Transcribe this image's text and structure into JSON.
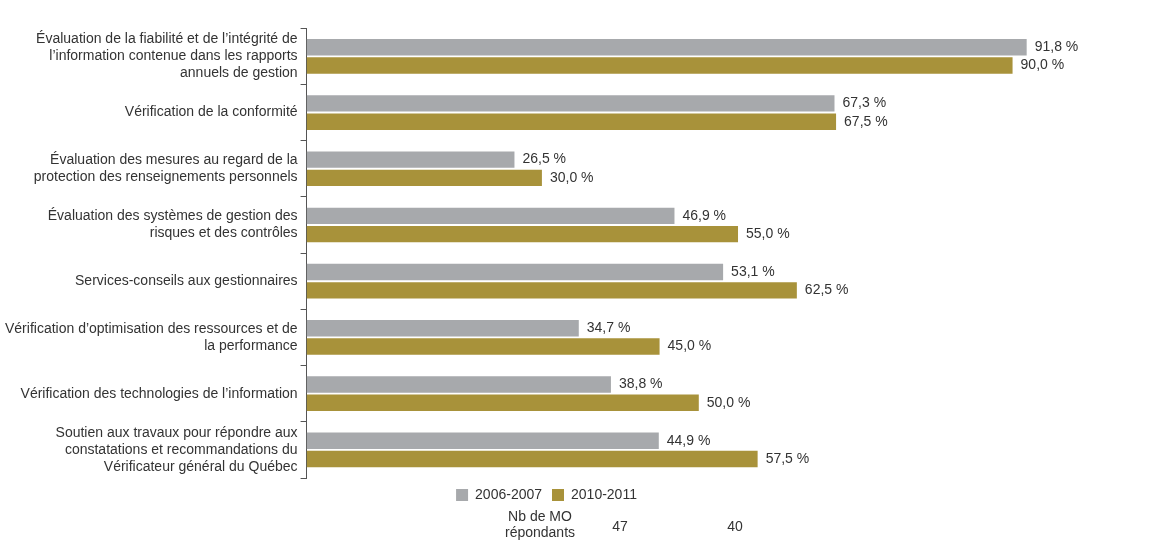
{
  "chart_data": {
    "type": "bar",
    "orientation": "horizontal",
    "categories": [
      "Évaluation de la fiabilité et de l’intégrité de l’information contenue dans les rapports annuels de gestion",
      "Vérification de la conformité",
      "Évaluation des mesures au regard de la protection des renseignements personnels",
      "Évaluation des systèmes de gestion des risques et des contrôles",
      "Services-conseils aux gestionnaires",
      "Vérification d’optimisation des ressources et de la performance",
      "Vérification des technologies de l’information",
      "Soutien aux travaux pour répondre aux constatations et recommandations du Vérificateur général du Québec"
    ],
    "series": [
      {
        "name": "2006-2007",
        "color": "#a7a9ac",
        "values": [
          91.8,
          67.3,
          26.5,
          46.9,
          53.1,
          34.7,
          38.8,
          44.9
        ],
        "value_labels": [
          "91,8 %",
          "67,3 %",
          "26,5 %",
          "46,9 %",
          "53,1 %",
          "34,7 %",
          "38,8 %",
          "44,9 %"
        ]
      },
      {
        "name": "2010-2011",
        "color": "#a8923a",
        "values": [
          90.0,
          67.5,
          30.0,
          55.0,
          62.5,
          45.0,
          50.0,
          57.5
        ],
        "value_labels": [
          "90,0 %",
          "67,5 %",
          "30,0 %",
          "55,0 %",
          "62,5 %",
          "45,0 %",
          "50,0 %",
          "57,5 %"
        ]
      }
    ],
    "legend": "bottom",
    "annotations": [
      "Nb de MO répondants",
      "47",
      "40"
    ]
  }
}
